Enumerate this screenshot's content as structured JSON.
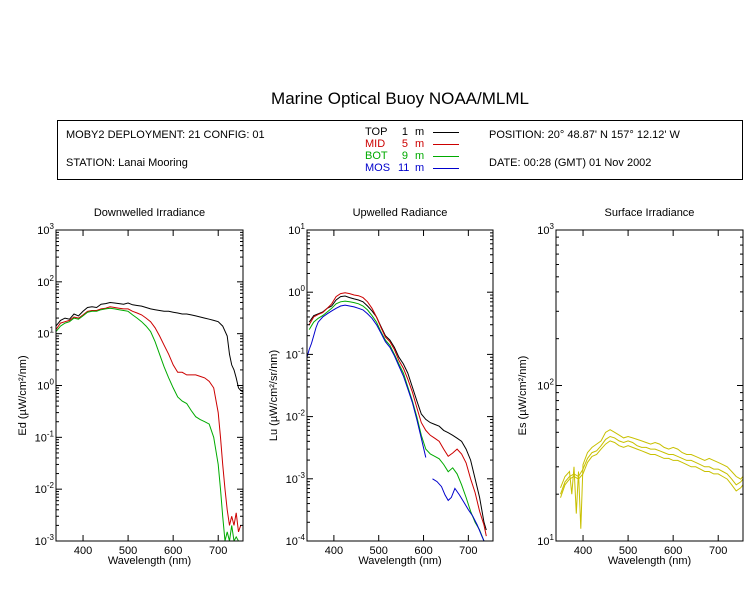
{
  "title": "Marine Optical Buoy NOAA/MLML",
  "info": {
    "deployment": "MOBY2 DEPLOYMENT: 21 CONFIG: 01",
    "station": "STATION: Lanai Mooring",
    "position": "POSITION: 20° 48.87' N   157° 12.12' W",
    "date": "DATE: 00:28 (GMT) 01 Nov 2002",
    "depths": [
      {
        "name": "TOP",
        "num": "1",
        "unit": "m",
        "color": "#000000"
      },
      {
        "name": "MID",
        "num": "5",
        "unit": "m",
        "color": "#cc0000"
      },
      {
        "name": "BOT",
        "num": "9",
        "unit": "m",
        "color": "#00aa00"
      },
      {
        "name": "MOS",
        "num": "11",
        "unit": "m",
        "color": "#0000cc"
      }
    ]
  },
  "chart_data": [
    {
      "type": "line",
      "title": "Downwelled Irradiance",
      "xlabel": "Wavelength (nm)",
      "ylabel": "Ed  (µW/cm²/nm)",
      "xlim": [
        340,
        755
      ],
      "ylim": [
        0.001,
        1000
      ],
      "yscale": "log",
      "xticks": [
        400,
        500,
        600,
        700
      ],
      "yticks": [
        {
          "v": 0.001,
          "m": "10",
          "e": "-3"
        },
        {
          "v": 0.01,
          "m": "10",
          "e": "-2"
        },
        {
          "v": 0.1,
          "m": "10",
          "e": "-1"
        },
        {
          "v": 1,
          "m": "10",
          "e": "0"
        },
        {
          "v": 10,
          "m": "10",
          "e": "1"
        },
        {
          "v": 100,
          "m": "10",
          "e": "2"
        },
        {
          "v": 1000,
          "m": "10",
          "e": "3"
        }
      ],
      "series": [
        {
          "name": "TOP",
          "color": "#000000",
          "x": [
            340,
            350,
            360,
            370,
            380,
            390,
            400,
            410,
            420,
            430,
            440,
            450,
            460,
            470,
            480,
            490,
            500,
            510,
            520,
            530,
            540,
            550,
            560,
            570,
            580,
            590,
            600,
            610,
            620,
            630,
            640,
            650,
            660,
            670,
            680,
            690,
            700,
            710,
            720,
            725,
            730,
            735,
            740,
            745,
            750,
            755
          ],
          "y": [
            14,
            18,
            20,
            19,
            24,
            22,
            27,
            32,
            33,
            32,
            37,
            38,
            40,
            39,
            38,
            37,
            39,
            36,
            35,
            34,
            32,
            30,
            29,
            28,
            27,
            27,
            26,
            25,
            24,
            24,
            23,
            22,
            21,
            20,
            19,
            18,
            17,
            14,
            9,
            4,
            2.5,
            2,
            1.4,
            0.9,
            0.8,
            0.75
          ]
        },
        {
          "name": "MID",
          "color": "#cc0000",
          "x": [
            340,
            350,
            360,
            370,
            380,
            390,
            400,
            410,
            420,
            430,
            440,
            450,
            460,
            470,
            480,
            490,
            500,
            510,
            520,
            530,
            540,
            550,
            560,
            570,
            580,
            590,
            600,
            610,
            620,
            630,
            640,
            650,
            660,
            670,
            680,
            690,
            700,
            705,
            710,
            715,
            720,
            725,
            730,
            735,
            740,
            745,
            750
          ],
          "y": [
            12,
            16,
            17,
            18,
            21,
            20,
            23,
            27,
            28,
            28,
            30,
            31,
            33,
            32,
            31,
            30,
            30,
            27,
            25,
            23,
            20,
            17,
            13,
            9,
            6,
            4,
            2.5,
            1.8,
            1.8,
            1.6,
            1.6,
            1.6,
            1.5,
            1.4,
            1.2,
            0.9,
            0.3,
            0.1,
            0.03,
            0.01,
            0.004,
            0.002,
            0.003,
            0.002,
            0.0035,
            0.0015,
            0.002
          ]
        },
        {
          "name": "BOT",
          "color": "#00aa00",
          "x": [
            340,
            350,
            360,
            370,
            380,
            390,
            400,
            410,
            420,
            430,
            440,
            450,
            460,
            470,
            480,
            490,
            500,
            510,
            520,
            530,
            540,
            550,
            560,
            570,
            580,
            590,
            600,
            610,
            620,
            630,
            640,
            650,
            660,
            670,
            680,
            690,
            700,
            705,
            710,
            715,
            720,
            725,
            730,
            735,
            740,
            745,
            750
          ],
          "y": [
            11,
            14,
            16,
            17,
            20,
            19,
            22,
            26,
            27,
            27,
            29,
            30,
            31,
            30,
            29,
            28,
            27,
            23,
            20,
            17,
            14,
            11,
            7,
            4,
            2.3,
            1.4,
            0.9,
            0.6,
            0.5,
            0.45,
            0.33,
            0.25,
            0.22,
            0.2,
            0.18,
            0.1,
            0.03,
            0.01,
            0.003,
            0.001,
            0.0015,
            0.001,
            0.002,
            0.001,
            0.0012,
            0.001,
            0.001
          ]
        }
      ]
    },
    {
      "type": "line",
      "title": "Upwelled Radiance",
      "xlabel": "Wavelength (nm)",
      "ylabel": "Lu  (µW/cm²/sr/nm)",
      "xlim": [
        340,
        755
      ],
      "ylim": [
        0.0001,
        10
      ],
      "yscale": "log",
      "xticks": [
        400,
        500,
        600,
        700
      ],
      "yticks": [
        {
          "v": 0.0001,
          "m": "10",
          "e": "-4"
        },
        {
          "v": 0.001,
          "m": "10",
          "e": "-3"
        },
        {
          "v": 0.01,
          "m": "10",
          "e": "-2"
        },
        {
          "v": 0.1,
          "m": "10",
          "e": "-1"
        },
        {
          "v": 1,
          "m": "10",
          "e": "0"
        },
        {
          "v": 10,
          "m": "10",
          "e": "1"
        }
      ],
      "series": [
        {
          "name": "TOP",
          "color": "#000000",
          "x": [
            345,
            355,
            365,
            375,
            385,
            395,
            405,
            415,
            425,
            435,
            445,
            455,
            465,
            475,
            485,
            495,
            505,
            515,
            525,
            535,
            545,
            555,
            565,
            575,
            585,
            595,
            605,
            615,
            625,
            635,
            645,
            655,
            665,
            675,
            685,
            695,
            705,
            715,
            725,
            735,
            740
          ],
          "y": [
            0.33,
            0.42,
            0.45,
            0.48,
            0.55,
            0.6,
            0.75,
            0.85,
            0.87,
            0.82,
            0.78,
            0.75,
            0.7,
            0.6,
            0.5,
            0.4,
            0.28,
            0.2,
            0.17,
            0.13,
            0.09,
            0.07,
            0.05,
            0.03,
            0.018,
            0.011,
            0.009,
            0.008,
            0.0075,
            0.007,
            0.006,
            0.0055,
            0.005,
            0.0045,
            0.004,
            0.003,
            0.002,
            0.001,
            0.0005,
            0.0002,
            0.00015
          ]
        },
        {
          "name": "MID",
          "color": "#cc0000",
          "x": [
            345,
            355,
            365,
            375,
            385,
            395,
            405,
            415,
            425,
            435,
            445,
            455,
            465,
            475,
            485,
            495,
            505,
            515,
            525,
            535,
            545,
            555,
            565,
            575,
            585,
            595,
            605,
            615,
            625,
            635,
            645,
            655,
            665,
            675,
            685,
            695,
            705,
            715,
            725,
            735,
            740
          ],
          "y": [
            0.3,
            0.4,
            0.44,
            0.47,
            0.55,
            0.65,
            0.85,
            0.95,
            0.98,
            0.95,
            0.9,
            0.88,
            0.82,
            0.7,
            0.55,
            0.4,
            0.27,
            0.19,
            0.16,
            0.12,
            0.08,
            0.06,
            0.04,
            0.025,
            0.014,
            0.008,
            0.006,
            0.005,
            0.0045,
            0.004,
            0.003,
            0.0023,
            0.0026,
            0.003,
            0.0025,
            0.0018,
            0.001,
            0.0006,
            0.0003,
            0.00018,
            0.00012
          ]
        },
        {
          "name": "BOT",
          "color": "#00aa00",
          "x": [
            345,
            355,
            365,
            375,
            385,
            395,
            405,
            415,
            425,
            435,
            445,
            455,
            465,
            475,
            485,
            495,
            505,
            515,
            525,
            535,
            545,
            555,
            565,
            575,
            585,
            595,
            605,
            615,
            625,
            635,
            645,
            655,
            665,
            675,
            685,
            695,
            705,
            715,
            725,
            735,
            740
          ],
          "y": [
            0.25,
            0.33,
            0.38,
            0.42,
            0.48,
            0.55,
            0.65,
            0.7,
            0.72,
            0.7,
            0.68,
            0.65,
            0.6,
            0.52,
            0.42,
            0.33,
            0.23,
            0.17,
            0.14,
            0.1,
            0.07,
            0.05,
            0.03,
            0.018,
            0.01,
            0.005,
            0.003,
            0.0025,
            0.0023,
            0.0021,
            0.0017,
            0.0013,
            0.0015,
            0.0012,
            0.0008,
            0.0005,
            0.0003,
            0.0002,
            0.00015,
            0.0001,
            0.0001
          ]
        },
        {
          "name": "MOS",
          "color": "#0000cc",
          "x": [
            340,
            345,
            350,
            355,
            360,
            365,
            375,
            385,
            395,
            405,
            415,
            425,
            435,
            445,
            455,
            465,
            475,
            485,
            495,
            505,
            515,
            525,
            535,
            545,
            555,
            565,
            575,
            585,
            595,
            605
          ],
          "y": [
            0.09,
            0.12,
            0.15,
            0.2,
            0.27,
            0.33,
            0.4,
            0.45,
            0.5,
            0.55,
            0.6,
            0.62,
            0.6,
            0.58,
            0.55,
            0.52,
            0.45,
            0.38,
            0.3,
            0.22,
            0.16,
            0.13,
            0.095,
            0.065,
            0.045,
            0.028,
            0.017,
            0.009,
            0.0045,
            0.0022
          ]
        },
        {
          "name": "MOS",
          "color": "#0000cc",
          "x": [
            620,
            630,
            640,
            648,
            655,
            662,
            670,
            680,
            690,
            700,
            710,
            720,
            730,
            735
          ],
          "y": [
            0.001,
            0.0009,
            0.00075,
            0.00055,
            0.00045,
            0.0005,
            0.0007,
            0.00055,
            0.00042,
            0.00032,
            0.00025,
            0.00018,
            0.00012,
            0.0001
          ]
        }
      ]
    },
    {
      "type": "line",
      "title": "Surface Irradiance",
      "xlabel": "Wavelength (nm)",
      "ylabel": "Es  (µW/cm²/nm)",
      "xlim": [
        340,
        755
      ],
      "ylim": [
        10,
        1000
      ],
      "yscale": "log",
      "xticks": [
        400,
        500,
        600,
        700
      ],
      "yticks": [
        {
          "v": 10,
          "m": "10",
          "e": "1"
        },
        {
          "v": 100,
          "m": "10",
          "e": "2"
        },
        {
          "v": 1000,
          "m": "10",
          "e": "3"
        }
      ],
      "series": [
        {
          "name": "Es",
          "color": "#c8c000",
          "x": [
            350,
            360,
            370,
            375,
            380,
            385,
            390,
            395,
            400,
            410,
            420,
            430,
            440,
            450,
            460,
            470,
            480,
            490,
            500,
            510,
            520,
            530,
            540,
            550,
            560,
            570,
            580,
            590,
            600,
            610,
            620,
            630,
            640,
            650,
            660,
            670,
            680,
            690,
            700,
            710,
            720,
            730,
            740,
            750,
            755
          ],
          "y": [
            22,
            26,
            28,
            20,
            30,
            15,
            28,
            12,
            31,
            37,
            40,
            42,
            44,
            50,
            52,
            50,
            48,
            46,
            47,
            46,
            45,
            44,
            43,
            42,
            43,
            42,
            40,
            39,
            40,
            39,
            37,
            36,
            36,
            35,
            34,
            33,
            34,
            33,
            32,
            31,
            30,
            28,
            26,
            25,
            26
          ]
        },
        {
          "name": "Es",
          "color": "#c8c000",
          "x": [
            350,
            360,
            370,
            380,
            390,
            400,
            410,
            420,
            430,
            440,
            450,
            460,
            470,
            480,
            490,
            500,
            510,
            520,
            530,
            540,
            550,
            560,
            570,
            580,
            590,
            600,
            610,
            620,
            630,
            640,
            650,
            660,
            670,
            680,
            690,
            700,
            710,
            720,
            730,
            740,
            750,
            755
          ],
          "y": [
            20,
            24,
            26,
            27,
            26,
            29,
            34,
            37,
            38,
            41,
            45,
            47,
            46,
            44,
            43,
            44,
            43,
            41,
            40,
            40,
            39,
            39,
            38,
            37,
            36,
            36,
            35,
            34,
            33,
            33,
            32,
            31,
            30,
            30,
            29,
            29,
            28,
            27,
            25,
            23,
            24,
            25
          ]
        },
        {
          "name": "Es",
          "color": "#c8c000",
          "x": [
            350,
            360,
            370,
            380,
            390,
            400,
            410,
            420,
            430,
            440,
            450,
            460,
            470,
            480,
            490,
            500,
            510,
            520,
            530,
            540,
            550,
            560,
            570,
            580,
            590,
            600,
            610,
            620,
            630,
            640,
            650,
            660,
            670,
            680,
            690,
            700,
            710,
            720,
            730,
            740,
            750,
            755
          ],
          "y": [
            19,
            23,
            25,
            26,
            25,
            27,
            32,
            35,
            36,
            39,
            42,
            44,
            43,
            41,
            40,
            41,
            40,
            39,
            38,
            37,
            36,
            36,
            35,
            34,
            34,
            33,
            33,
            32,
            31,
            30,
            30,
            29,
            28,
            28,
            27,
            27,
            26,
            25,
            23,
            21,
            22,
            23
          ]
        }
      ]
    }
  ]
}
